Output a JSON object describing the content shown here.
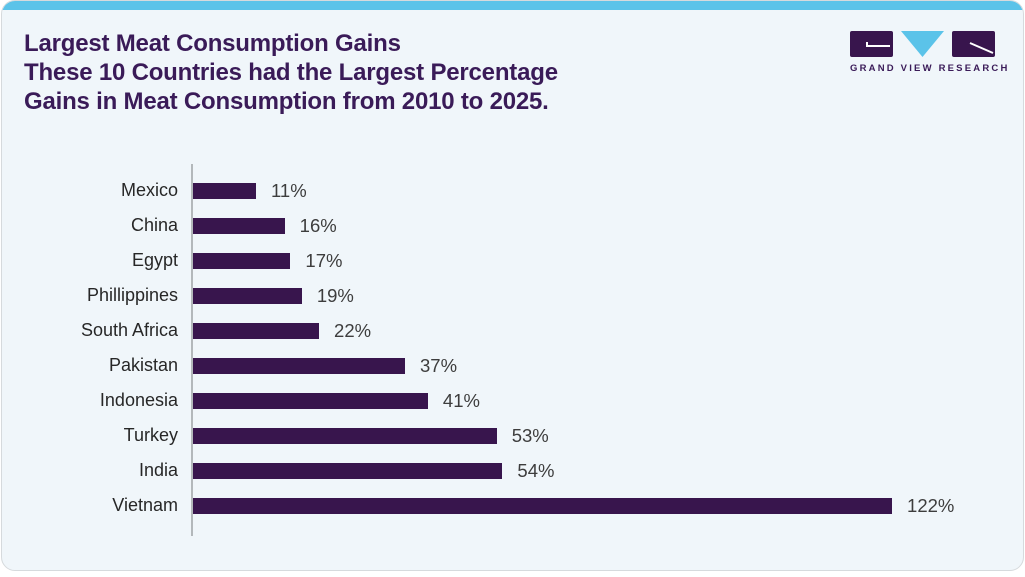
{
  "header": {
    "title_lines": [
      "Largest Meat Consumption Gains",
      "These 10 Countries had the Largest Percentage",
      "Gains in Meat Consumption from 2010 to 2025."
    ]
  },
  "logo": {
    "name": "grand-view-research-logo",
    "text": "GRAND VIEW RESEARCH",
    "purple": "#38154d",
    "blue": "#5bc3e9"
  },
  "colors": {
    "card_background": "#f0f6fa",
    "top_accent_bar": "#5bc3e9",
    "bar_fill": "#38154d",
    "title_text": "#3a1b58",
    "axis_line": "#b3b8bb"
  },
  "chart_data": {
    "type": "bar",
    "orientation": "horizontal",
    "title": "Largest Meat Consumption Gains",
    "subtitle": "These 10 Countries had the Largest Percentage Gains in Meat Consumption from 2010 to 2025.",
    "categories": [
      "Mexico",
      "China",
      "Egypt",
      "Phillippines",
      "South Africa",
      "Pakistan",
      "Indonesia",
      "Turkey",
      "India",
      "Vietnam"
    ],
    "values": [
      11,
      16,
      17,
      19,
      22,
      37,
      41,
      53,
      54,
      122
    ],
    "value_labels": [
      "11%",
      "16%",
      "17%",
      "19%",
      "22%",
      "37%",
      "41%",
      "53%",
      "54%",
      "122%"
    ],
    "xlabel": "",
    "ylabel": "",
    "xlim": [
      0,
      135
    ],
    "grid": false,
    "legend": false,
    "data_labels_position": "end-of-bar"
  }
}
